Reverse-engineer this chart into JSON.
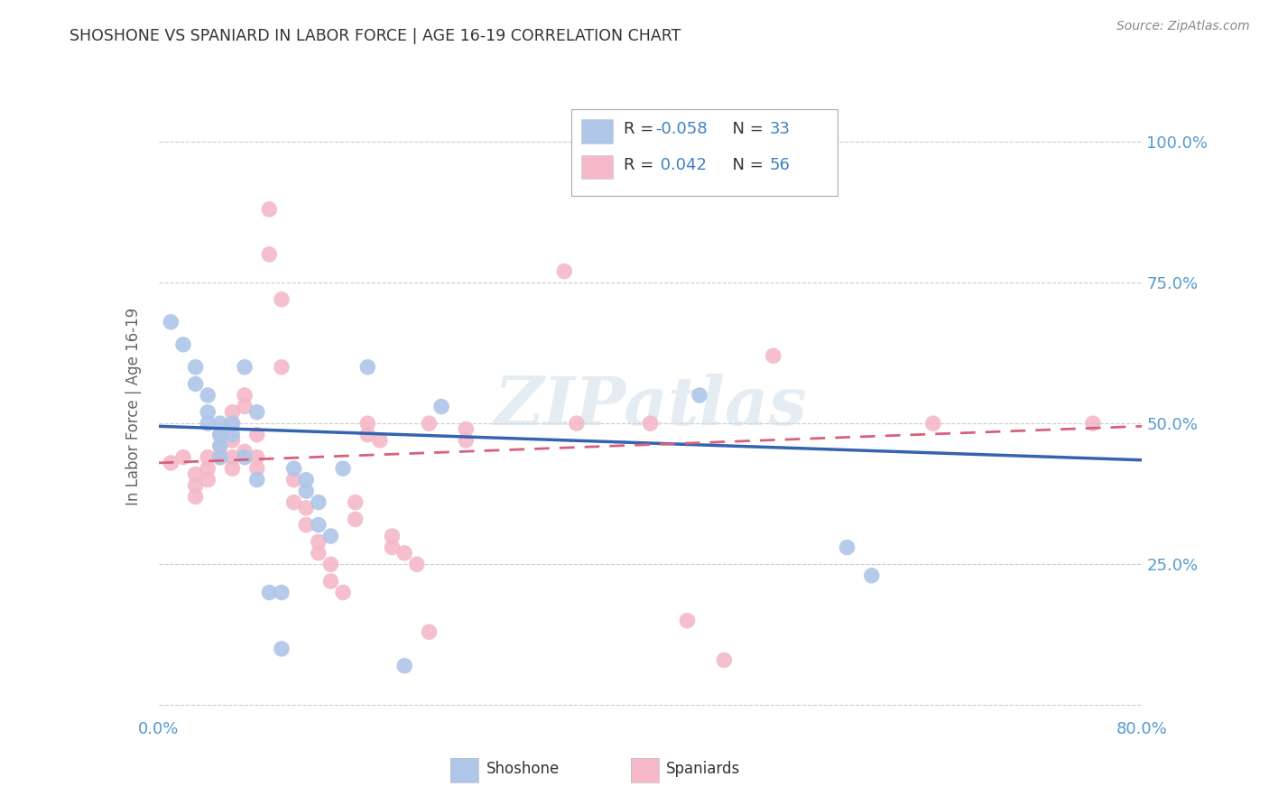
{
  "title": "SHOSHONE VS SPANIARD IN LABOR FORCE | AGE 16-19 CORRELATION CHART",
  "source": "Source: ZipAtlas.com",
  "ylabel": "In Labor Force | Age 16-19",
  "xlim": [
    0.0,
    0.8
  ],
  "ylim": [
    -0.02,
    1.08
  ],
  "watermark": "ZIPatlas",
  "shoshone_R": "-0.058",
  "shoshone_N": "33",
  "spaniard_R": "0.042",
  "spaniard_N": "56",
  "shoshone_color": "#aec6e8",
  "spaniard_color": "#f4b8c8",
  "shoshone_line_color": "#3464b0",
  "spaniard_line_color": "#d9607a",
  "shoshone_points": [
    [
      0.01,
      0.68
    ],
    [
      0.02,
      0.64
    ],
    [
      0.03,
      0.6
    ],
    [
      0.03,
      0.57
    ],
    [
      0.04,
      0.55
    ],
    [
      0.04,
      0.52
    ],
    [
      0.04,
      0.5
    ],
    [
      0.05,
      0.5
    ],
    [
      0.05,
      0.48
    ],
    [
      0.05,
      0.46
    ],
    [
      0.05,
      0.44
    ],
    [
      0.06,
      0.5
    ],
    [
      0.06,
      0.48
    ],
    [
      0.07,
      0.6
    ],
    [
      0.07,
      0.44
    ],
    [
      0.08,
      0.52
    ],
    [
      0.08,
      0.4
    ],
    [
      0.09,
      0.2
    ],
    [
      0.1,
      0.1
    ],
    [
      0.1,
      0.2
    ],
    [
      0.11,
      0.42
    ],
    [
      0.12,
      0.38
    ],
    [
      0.12,
      0.4
    ],
    [
      0.13,
      0.36
    ],
    [
      0.13,
      0.32
    ],
    [
      0.14,
      0.3
    ],
    [
      0.15,
      0.42
    ],
    [
      0.17,
      0.6
    ],
    [
      0.2,
      0.07
    ],
    [
      0.23,
      0.53
    ],
    [
      0.44,
      0.55
    ],
    [
      0.56,
      0.28
    ],
    [
      0.58,
      0.23
    ]
  ],
  "spaniard_points": [
    [
      0.01,
      0.43
    ],
    [
      0.02,
      0.44
    ],
    [
      0.03,
      0.41
    ],
    [
      0.03,
      0.39
    ],
    [
      0.03,
      0.37
    ],
    [
      0.04,
      0.44
    ],
    [
      0.04,
      0.42
    ],
    [
      0.04,
      0.4
    ],
    [
      0.05,
      0.48
    ],
    [
      0.05,
      0.46
    ],
    [
      0.05,
      0.44
    ],
    [
      0.06,
      0.52
    ],
    [
      0.06,
      0.5
    ],
    [
      0.06,
      0.47
    ],
    [
      0.06,
      0.44
    ],
    [
      0.06,
      0.42
    ],
    [
      0.07,
      0.55
    ],
    [
      0.07,
      0.53
    ],
    [
      0.07,
      0.45
    ],
    [
      0.08,
      0.48
    ],
    [
      0.08,
      0.44
    ],
    [
      0.08,
      0.42
    ],
    [
      0.09,
      0.88
    ],
    [
      0.09,
      0.8
    ],
    [
      0.1,
      0.72
    ],
    [
      0.1,
      0.6
    ],
    [
      0.11,
      0.4
    ],
    [
      0.11,
      0.36
    ],
    [
      0.12,
      0.35
    ],
    [
      0.12,
      0.32
    ],
    [
      0.13,
      0.29
    ],
    [
      0.13,
      0.27
    ],
    [
      0.14,
      0.25
    ],
    [
      0.14,
      0.22
    ],
    [
      0.15,
      0.2
    ],
    [
      0.16,
      0.36
    ],
    [
      0.16,
      0.33
    ],
    [
      0.17,
      0.5
    ],
    [
      0.17,
      0.48
    ],
    [
      0.18,
      0.47
    ],
    [
      0.19,
      0.3
    ],
    [
      0.19,
      0.28
    ],
    [
      0.2,
      0.27
    ],
    [
      0.21,
      0.25
    ],
    [
      0.22,
      0.5
    ],
    [
      0.22,
      0.13
    ],
    [
      0.25,
      0.49
    ],
    [
      0.25,
      0.47
    ],
    [
      0.33,
      0.77
    ],
    [
      0.34,
      0.5
    ],
    [
      0.4,
      0.5
    ],
    [
      0.43,
      0.15
    ],
    [
      0.46,
      0.08
    ],
    [
      0.5,
      0.62
    ],
    [
      0.63,
      0.5
    ],
    [
      0.76,
      0.5
    ]
  ],
  "shoshone_line_x": [
    0.0,
    0.8
  ],
  "shoshone_line_y": [
    0.495,
    0.435
  ],
  "spaniard_line_x": [
    0.0,
    0.8
  ],
  "spaniard_line_y": [
    0.43,
    0.495
  ],
  "grid_color": "#cccccc",
  "bg_color": "#ffffff",
  "title_color": "#333333",
  "blue_color": "#4080c0",
  "tick_color": "#5599cc"
}
